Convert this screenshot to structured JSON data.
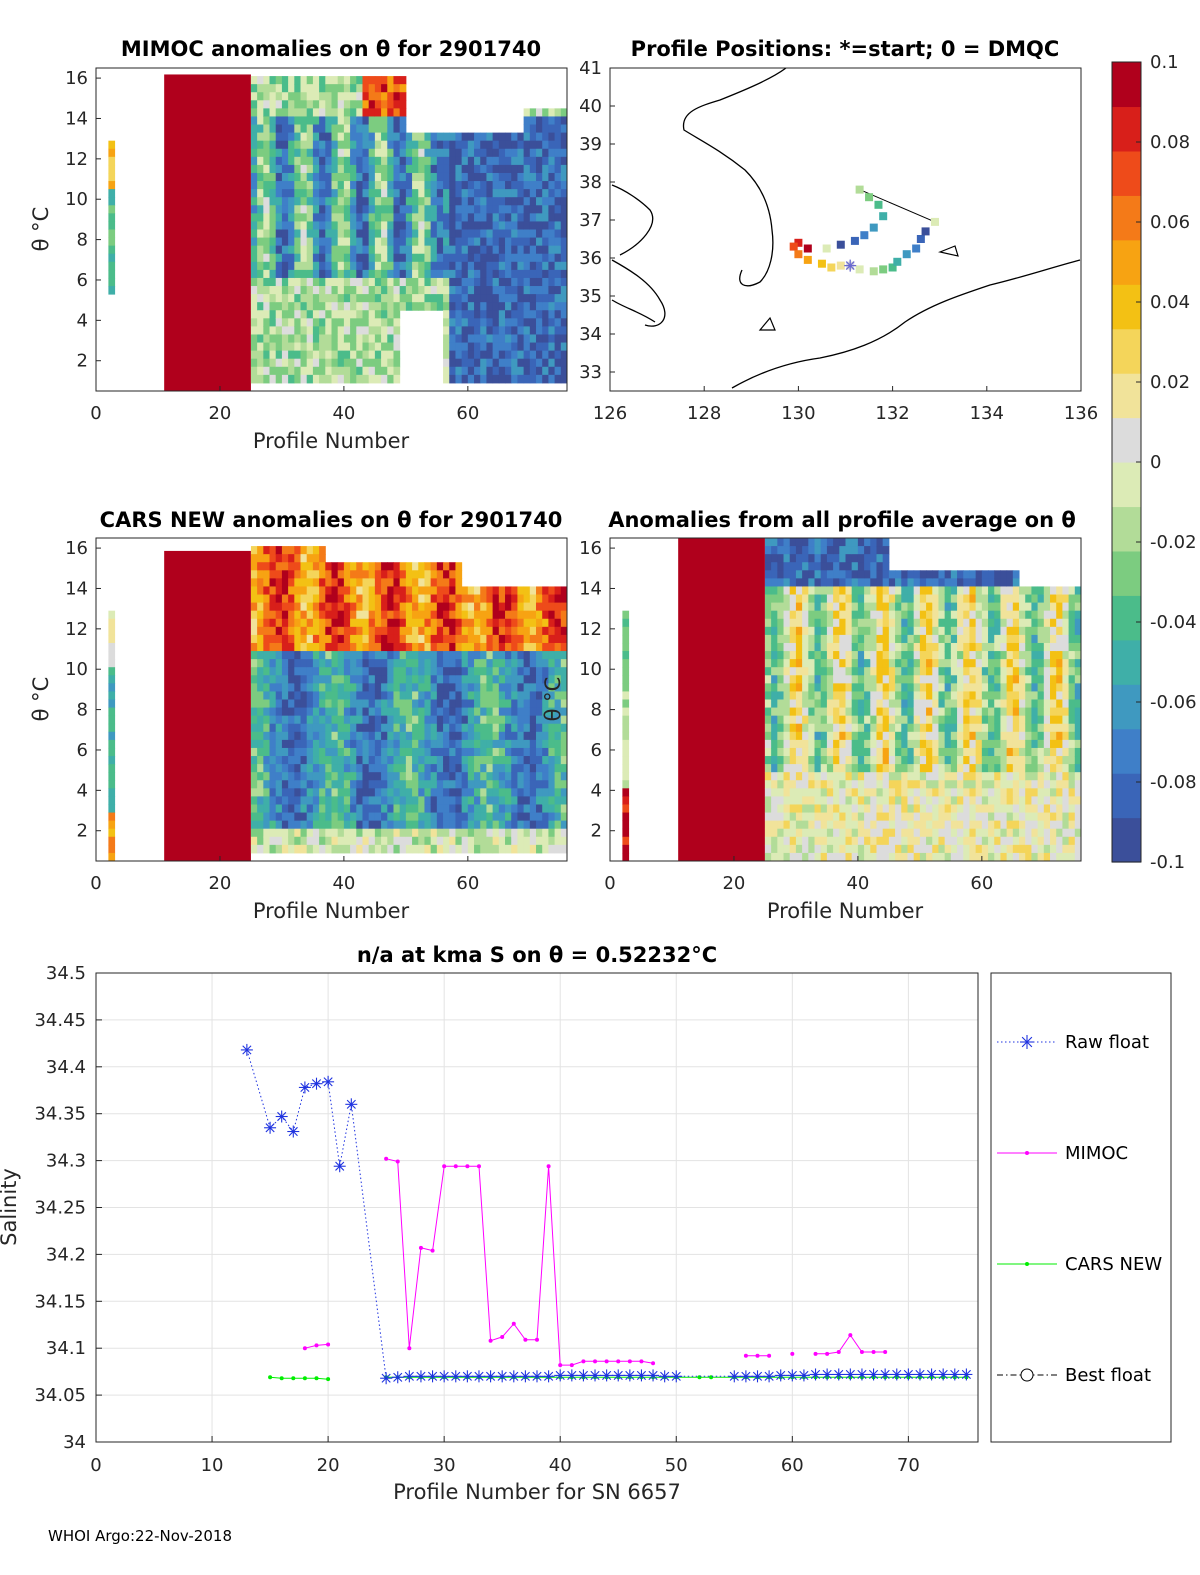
{
  "footer": "WHOI Argo:22-Nov-2018",
  "colors": {
    "raw": "#1f33e0",
    "mimoc": "#ff00ff",
    "cars": "#00ee00",
    "best": "#000000",
    "grid": "#e3e3e3",
    "axis": "#262626"
  },
  "colormap": [
    "#3b4f9a",
    "#3a65b8",
    "#3f7fc8",
    "#3f99c0",
    "#3fafa8",
    "#4bbc8a",
    "#7ccc80",
    "#b2dc98",
    "#dcebb6",
    "#dcdcdc",
    "#f1e39a",
    "#f4d55a",
    "#f3c114",
    "#f7a312",
    "#f47a18",
    "#ee4b1a",
    "#d81f1a",
    "#b0001c"
  ],
  "chart_data": [
    {
      "type": "heatmap",
      "title": "MIMOC anomalies on θ  for 2901740",
      "xlabel": "Profile Number",
      "ylabel": "θ °C",
      "xlim": [
        0,
        76
      ],
      "ylim": [
        0.5,
        16.5
      ],
      "xticks": [
        "0",
        "20",
        "40",
        "60"
      ],
      "yticks": [
        "2",
        "4",
        "6",
        "8",
        "10",
        "12",
        "14",
        "16"
      ]
    },
    {
      "type": "scatter",
      "title": "Profile Positions: *=start; 0 = DMQC",
      "xlim": [
        126,
        136
      ],
      "ylim": [
        32.5,
        41
      ],
      "xticks": [
        "126",
        "128",
        "130",
        "132",
        "134",
        "136"
      ],
      "yticks": [
        "33",
        "34",
        "35",
        "36",
        "37",
        "38",
        "39",
        "40",
        "41"
      ],
      "start": [
        131.1,
        35.8
      ],
      "track": [
        [
          130.2,
          36.25
        ],
        [
          130.0,
          36.4
        ],
        [
          129.9,
          36.3
        ],
        [
          130.0,
          36.1
        ],
        [
          130.2,
          35.95
        ],
        [
          130.5,
          35.85
        ],
        [
          130.7,
          35.75
        ],
        [
          130.9,
          35.8
        ],
        [
          131.1,
          35.8
        ],
        [
          131.3,
          35.7
        ],
        [
          131.6,
          35.65
        ],
        [
          131.8,
          35.7
        ],
        [
          132.0,
          35.75
        ],
        [
          132.1,
          35.9
        ],
        [
          132.3,
          36.1
        ],
        [
          132.5,
          36.25
        ],
        [
          132.6,
          36.5
        ],
        [
          132.7,
          36.7
        ],
        [
          132.9,
          36.95
        ],
        [
          131.3,
          37.8
        ],
        [
          131.5,
          37.6
        ],
        [
          131.7,
          37.4
        ],
        [
          131.8,
          37.1
        ],
        [
          131.6,
          36.8
        ],
        [
          131.4,
          36.6
        ],
        [
          131.2,
          36.45
        ],
        [
          130.9,
          36.35
        ],
        [
          130.6,
          36.25
        ]
      ]
    },
    {
      "type": "heatmap",
      "title": "CARS NEW anomalies on θ for 2901740",
      "xlabel": "Profile Number",
      "ylabel": "θ °C",
      "xlim": [
        0,
        76
      ],
      "ylim": [
        0.5,
        16.5
      ],
      "xticks": [
        "0",
        "20",
        "40",
        "60"
      ],
      "yticks": [
        "2",
        "4",
        "6",
        "8",
        "10",
        "12",
        "14",
        "16"
      ]
    },
    {
      "type": "heatmap",
      "title": "Anomalies from all profile average on θ",
      "xlabel": "Profile Number",
      "ylabel": "θ °C",
      "xlim": [
        0,
        76
      ],
      "ylim": [
        0.5,
        16.5
      ],
      "xticks": [
        "0",
        "20",
        "40",
        "60"
      ],
      "yticks": [
        "2",
        "4",
        "6",
        "8",
        "10",
        "12",
        "14",
        "16"
      ]
    },
    {
      "type": "line",
      "title": "n/a at kma S on θ = 0.52232°C",
      "xlabel": "Profile Number for SN 6657",
      "ylabel": "Salinity",
      "xlim": [
        0,
        76
      ],
      "ylim": [
        34,
        34.5
      ],
      "xticks": [
        "0",
        "10",
        "20",
        "30",
        "40",
        "50",
        "60",
        "70"
      ],
      "yticks": [
        "34",
        "34.05",
        "34.1",
        "34.15",
        "34.2",
        "34.25",
        "34.3",
        "34.35",
        "34.4",
        "34.45",
        "34.5"
      ],
      "series": [
        {
          "name": "Raw float",
          "segments": [
            [
              [
                13,
                34.418
              ],
              [
                15,
                34.335
              ],
              [
                16,
                34.347
              ],
              [
                17,
                34.331
              ],
              [
                18,
                34.378
              ],
              [
                19,
                34.382
              ],
              [
                20,
                34.384
              ],
              [
                21,
                34.294
              ],
              [
                22,
                34.36
              ],
              [
                25,
                34.068
              ],
              [
                26,
                34.069
              ],
              [
                27,
                34.07
              ],
              [
                28,
                34.07
              ],
              [
                29,
                34.07
              ],
              [
                30,
                34.07
              ],
              [
                31,
                34.07
              ],
              [
                32,
                34.07
              ],
              [
                33,
                34.07
              ],
              [
                34,
                34.07
              ],
              [
                35,
                34.07
              ],
              [
                36,
                34.07
              ],
              [
                37,
                34.07
              ],
              [
                38,
                34.07
              ],
              [
                39,
                34.07
              ],
              [
                40,
                34.071
              ],
              [
                41,
                34.071
              ],
              [
                42,
                34.071
              ],
              [
                43,
                34.071
              ],
              [
                44,
                34.071
              ],
              [
                45,
                34.071
              ],
              [
                46,
                34.071
              ],
              [
                47,
                34.071
              ],
              [
                48,
                34.071
              ],
              [
                49,
                34.07
              ],
              [
                50,
                34.07
              ],
              [
                55,
                34.07
              ],
              [
                56,
                34.07
              ],
              [
                57,
                34.07
              ],
              [
                58,
                34.07
              ],
              [
                59,
                34.071
              ],
              [
                60,
                34.071
              ],
              [
                61,
                34.071
              ],
              [
                62,
                34.072
              ],
              [
                63,
                34.072
              ],
              [
                64,
                34.072
              ],
              [
                65,
                34.072
              ],
              [
                66,
                34.072
              ],
              [
                67,
                34.072
              ],
              [
                68,
                34.072
              ],
              [
                69,
                34.072
              ],
              [
                70,
                34.072
              ],
              [
                71,
                34.072
              ],
              [
                72,
                34.072
              ],
              [
                73,
                34.072
              ],
              [
                74,
                34.072
              ],
              [
                75,
                34.072
              ]
            ]
          ]
        },
        {
          "name": "MIMOC",
          "segments": [
            [
              [
                18,
                34.1
              ],
              [
                19,
                34.103
              ],
              [
                20,
                34.104
              ]
            ],
            [
              [
                25,
                34.302
              ],
              [
                26,
                34.299
              ],
              [
                27,
                34.1
              ],
              [
                28,
                34.207
              ],
              [
                29,
                34.204
              ],
              [
                30,
                34.294
              ],
              [
                31,
                34.294
              ],
              [
                32,
                34.294
              ],
              [
                33,
                34.294
              ],
              [
                34,
                34.108
              ],
              [
                35,
                34.112
              ],
              [
                36,
                34.126
              ],
              [
                37,
                34.109
              ],
              [
                38,
                34.109
              ],
              [
                39,
                34.294
              ],
              [
                40,
                34.082
              ],
              [
                41,
                34.082
              ],
              [
                42,
                34.086
              ],
              [
                43,
                34.086
              ],
              [
                44,
                34.086
              ],
              [
                45,
                34.086
              ],
              [
                46,
                34.086
              ],
              [
                47,
                34.086
              ],
              [
                48,
                34.084
              ]
            ],
            [
              [
                56,
                34.092
              ],
              [
                57,
                34.092
              ],
              [
                58,
                34.092
              ]
            ],
            [
              [
                60,
                34.094
              ]
            ],
            [
              [
                62,
                34.094
              ],
              [
                63,
                34.094
              ],
              [
                64,
                34.096
              ],
              [
                65,
                34.114
              ],
              [
                66,
                34.096
              ],
              [
                67,
                34.096
              ],
              [
                68,
                34.096
              ]
            ]
          ]
        },
        {
          "name": "CARS NEW",
          "segments": [
            [
              [
                15,
                34.069
              ],
              [
                16,
                34.068
              ],
              [
                17,
                34.068
              ],
              [
                18,
                34.068
              ],
              [
                19,
                34.068
              ],
              [
                20,
                34.067
              ]
            ],
            [
              [
                25,
                34.069
              ],
              [
                26,
                34.069
              ],
              [
                27,
                34.069
              ],
              [
                28,
                34.069
              ],
              [
                29,
                34.069
              ],
              [
                30,
                34.069
              ],
              [
                31,
                34.069
              ],
              [
                32,
                34.069
              ],
              [
                33,
                34.069
              ],
              [
                34,
                34.069
              ],
              [
                35,
                34.069
              ],
              [
                36,
                34.069
              ],
              [
                37,
                34.069
              ],
              [
                38,
                34.069
              ],
              [
                39,
                34.069
              ],
              [
                40,
                34.069
              ],
              [
                41,
                34.069
              ],
              [
                42,
                34.069
              ],
              [
                43,
                34.069
              ],
              [
                44,
                34.069
              ],
              [
                45,
                34.069
              ],
              [
                46,
                34.069
              ],
              [
                47,
                34.069
              ],
              [
                48,
                34.069
              ],
              [
                49,
                34.069
              ],
              [
                50,
                34.069
              ],
              [
                52,
                34.069
              ],
              [
                53,
                34.069
              ],
              [
                55,
                34.069
              ],
              [
                56,
                34.069
              ],
              [
                57,
                34.069
              ],
              [
                58,
                34.069
              ],
              [
                59,
                34.069
              ],
              [
                60,
                34.069
              ],
              [
                61,
                34.069
              ],
              [
                62,
                34.069
              ],
              [
                63,
                34.069
              ],
              [
                64,
                34.069
              ],
              [
                65,
                34.069
              ],
              [
                66,
                34.069
              ],
              [
                67,
                34.069
              ],
              [
                68,
                34.069
              ],
              [
                69,
                34.069
              ],
              [
                70,
                34.069
              ],
              [
                71,
                34.069
              ],
              [
                72,
                34.069
              ],
              [
                73,
                34.069
              ],
              [
                74,
                34.069
              ],
              [
                75,
                34.069
              ]
            ]
          ]
        },
        {
          "name": "Best float",
          "segments": []
        }
      ]
    },
    {
      "type": "colorbar",
      "range": [
        -0.1,
        0.1
      ],
      "ticks": [
        "0.1",
        "0.08",
        "0.06",
        "0.04",
        "0.02",
        "0",
        "-0.02",
        "-0.04",
        "-0.06",
        "-0.08",
        "-0.1"
      ]
    }
  ]
}
